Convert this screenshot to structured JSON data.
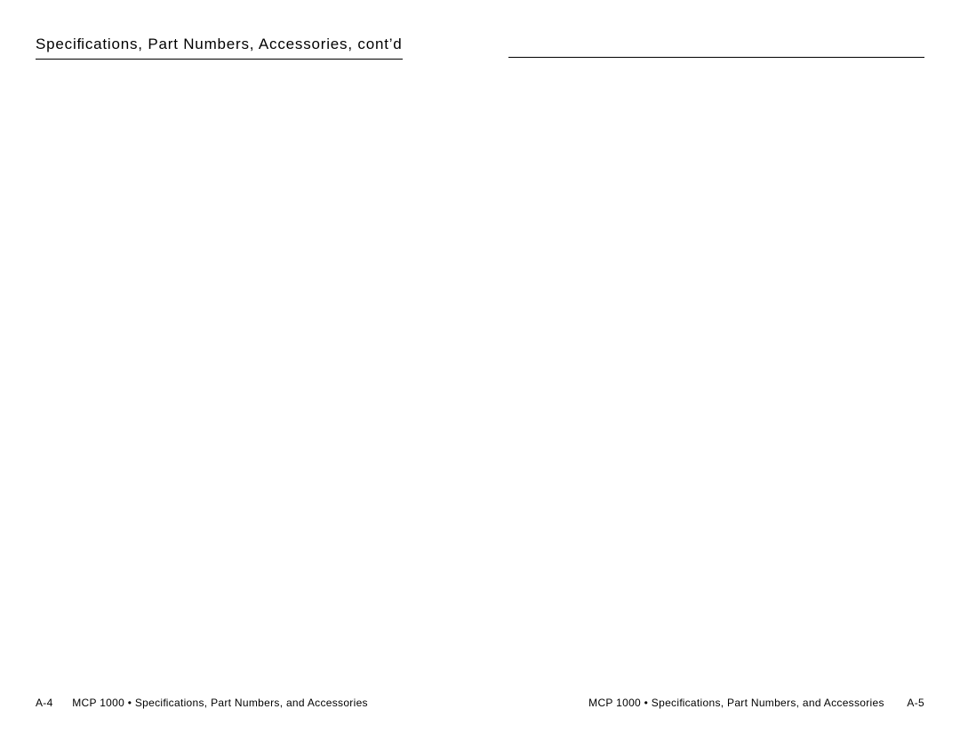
{
  "left_page": {
    "heading": "Speciﬁcations, Part Numbers, Accessories, cont’d",
    "footer": {
      "page_number": "A-4",
      "doc_ref": "MCP 1000 • Speciﬁcations, Part Numbers, and Accessories"
    }
  },
  "right_page": {
    "footer": {
      "doc_ref": "MCP 1000 • Speciﬁcations, Part Numbers, and Accessories",
      "page_number": "A-5"
    }
  },
  "style": {
    "background_color": "#ffffff",
    "text_color": "#000000",
    "rule_color": "#000000",
    "heading_fontsize": 17,
    "footer_fontsize": 12,
    "heading_letter_spacing": 0.8,
    "rule_thickness": 1.5
  }
}
